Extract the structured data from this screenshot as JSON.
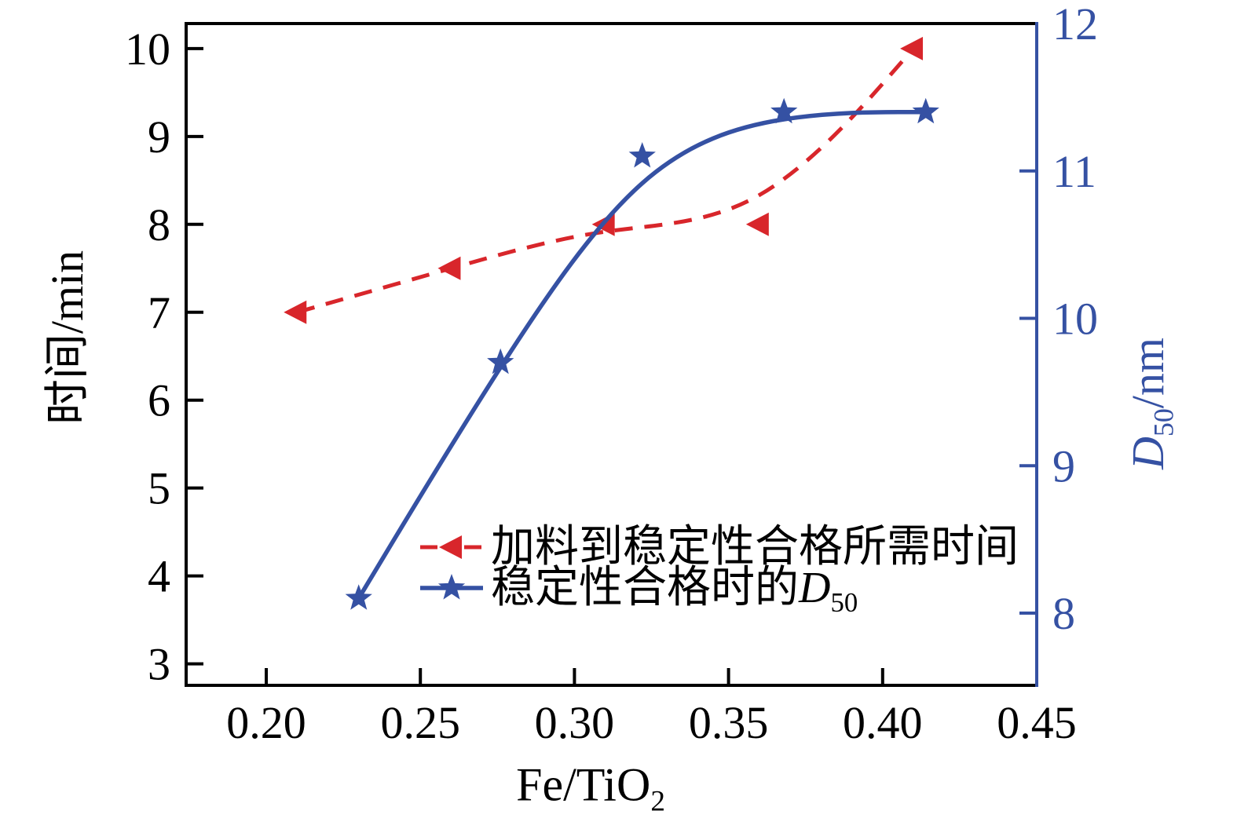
{
  "colors": {
    "red": "#d8262b",
    "blue": "#3551a3",
    "axis": "#000000",
    "background": "#ffffff"
  },
  "labels": {
    "y_left": "时间/min",
    "y_right": {
      "italic": "D",
      "sub": "50",
      "rest": "/nm"
    },
    "x": {
      "text": "Fe/TiO",
      "sub": "2"
    },
    "legend": [
      {
        "text": "加料到稳定性合格所需时间"
      },
      {
        "text": "稳定性合格时的",
        "italic": "D",
        "sub": "50"
      }
    ]
  },
  "chart_data": {
    "type": "line",
    "title": "",
    "xlabel": "Fe/TiO2",
    "ylabel_left": "时间/min",
    "ylabel_right": "D50/nm",
    "grid": false,
    "legend_position": "inside lower-center",
    "xlim": [
      0.174,
      0.45
    ],
    "ylim_left": [
      2.755,
      10.285
    ],
    "ylim_right": [
      7.51,
      12.0
    ],
    "x_ticks": [
      "0.20",
      "0.25",
      "0.30",
      "0.35",
      "0.40",
      "0.45"
    ],
    "y_ticks_left": [
      "3",
      "4",
      "5",
      "6",
      "7",
      "8",
      "9",
      "10"
    ],
    "y_ticks_right": [
      "8",
      "9",
      "10",
      "11",
      "12"
    ],
    "series": [
      {
        "name": "加料到稳定性合格所需时间",
        "axis": "left",
        "color": "#d8262b",
        "line": "dashed",
        "marker": "triangle-left",
        "smoothing": "b-spline",
        "x": [
          0.21,
          0.26,
          0.31,
          0.36,
          0.41
        ],
        "y": [
          7.0,
          7.5,
          8.0,
          8.0,
          10.0
        ]
      },
      {
        "name": "稳定性合格时的D50",
        "axis": "right",
        "color": "#3551a3",
        "line": "solid",
        "marker": "star",
        "smoothing": "b-spline",
        "x": [
          0.23,
          0.276,
          0.322,
          0.368,
          0.414
        ],
        "y": [
          8.1,
          9.7,
          11.1,
          11.4,
          11.4
        ]
      }
    ]
  }
}
